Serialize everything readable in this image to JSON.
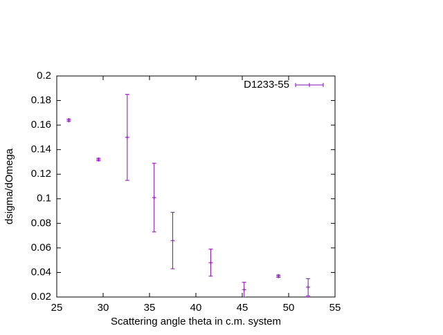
{
  "chart_data": {
    "type": "errorbar",
    "xlabel": "Scattering angle theta in c.m. system",
    "ylabel": "dsigma/dOmega",
    "xlim": [
      25,
      55
    ],
    "xticks": [
      25,
      30,
      35,
      40,
      45,
      50,
      55
    ],
    "ylim": [
      0.02,
      0.2
    ],
    "yticks": [
      0.02,
      0.04,
      0.06,
      0.08,
      0.1,
      0.12,
      0.14,
      0.16,
      0.18,
      0.2
    ],
    "legend": "top-right",
    "series": [
      {
        "name": "D1233-55",
        "color": "#9400d3",
        "x": [
          26.3,
          29.5,
          32.6,
          35.5,
          37.5,
          41.6,
          45.2,
          48.9,
          52.1
        ],
        "values": [
          0.164,
          0.132,
          0.15,
          0.101,
          0.066,
          0.048,
          0.026,
          0.037,
          0.028
        ],
        "errors": [
          0.001,
          0.001,
          0.035,
          0.028,
          0.023,
          0.011,
          0.006,
          0.001,
          0.007
        ]
      }
    ]
  }
}
